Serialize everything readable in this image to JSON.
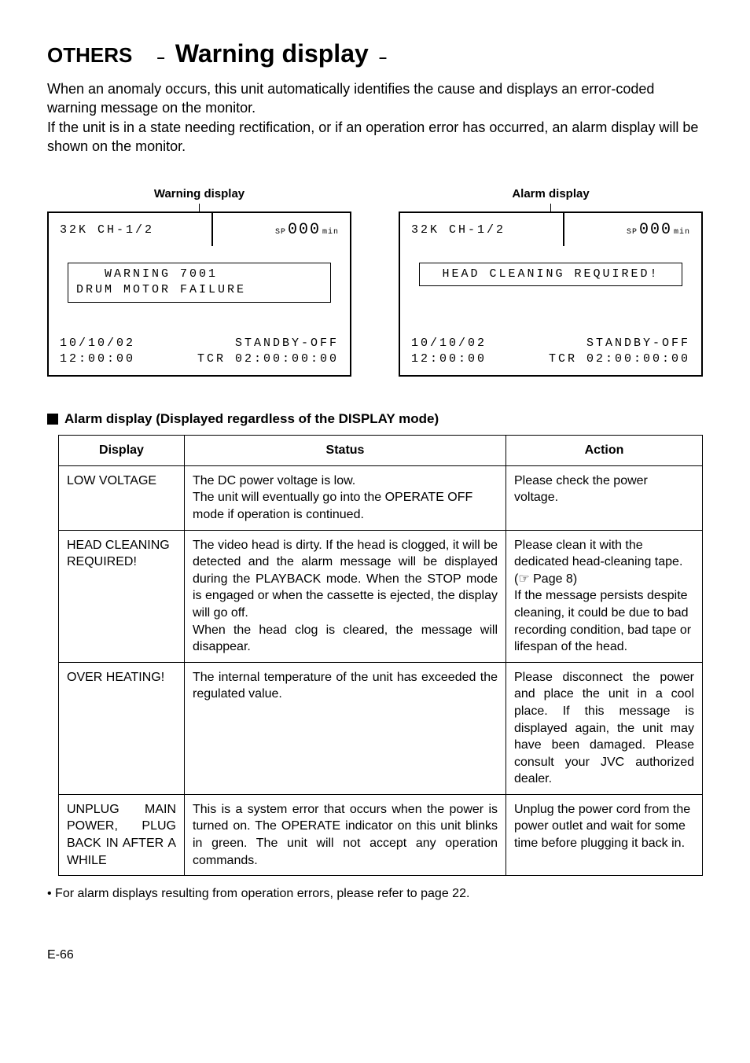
{
  "heading": {
    "others": "OTHERS",
    "dash": "–",
    "title": "Warning display",
    "dash2": "–"
  },
  "intro": {
    "p1": "When an anomaly occurs, this unit automatically identifies the cause and displays an error-coded warning message on the monitor.",
    "p2": "If the unit is in a state needing rectification, or if an operation error has occurred, an alarm display will be shown on the monitor."
  },
  "warning_display": {
    "label": "Warning display",
    "row1_left": "32K CH-1/2",
    "row1_prefix": "SP",
    "row1_big": "000",
    "row1_suffix": "min",
    "box_line1": "   WARNING 7001",
    "box_line2": "DRUM MOTOR FAILURE",
    "bl1": "10/10/02",
    "bl2": "12:00:00",
    "br1": "STANDBY-OFF",
    "br2": "TCR 02:00:00:00"
  },
  "alarm_display": {
    "label": "Alarm display",
    "row1_left": "32K CH-1/2",
    "row1_prefix": "SP",
    "row1_big": "000",
    "row1_suffix": "min",
    "box_line1": "HEAD CLEANING REQUIRED!",
    "bl1": "10/10/02",
    "bl2": "12:00:00",
    "br1": "STANDBY-OFF",
    "br2": "TCR 02:00:00:00"
  },
  "section_title": "Alarm display (Displayed regardless of the DISPLAY mode)",
  "table": {
    "headers": {
      "c1": "Display",
      "c2": "Status",
      "c3": "Action"
    },
    "rows": [
      {
        "display": "LOW VOLTAGE",
        "status": "The DC power voltage is low.\nThe unit will eventually go into the OPERATE OFF mode if operation is continued.",
        "action": "Please check the power voltage."
      },
      {
        "display": "HEAD CLEANING REQUIRED!",
        "status": "The video head is dirty. If the head is clogged, it will be detected and the alarm message will be displayed during the PLAYBACK mode. When the STOP mode is engaged or when the cassette is ejected, the display will go off.\nWhen the head clog is cleared, the message will disappear.",
        "action": "Please clean it with the dedicated head-cleaning tape.\n(☞ Page 8)\nIf the message persists despite cleaning, it could be due to bad recording condition, bad tape or lifespan of the head."
      },
      {
        "display": "OVER HEATING!",
        "status": "The internal temperature of the unit has exceeded the regulated value.",
        "action": "Please disconnect the power and place the unit in a cool place. If this message is displayed again, the unit may have been damaged. Please consult your JVC authorized dealer."
      },
      {
        "display": "UNPLUG MAIN POWER, PLUG BACK IN AFTER A WHILE",
        "status": "This is a system error that occurs when the power is turned on. The OPERATE indicator on this unit blinks in green. The unit will not accept any operation commands.",
        "action": "Unplug the power cord from the power outlet and wait for some time before plugging it back in."
      }
    ]
  },
  "footnote": "• For alarm displays resulting from operation errors, please refer to page 22.",
  "pagefoot": "E-66"
}
